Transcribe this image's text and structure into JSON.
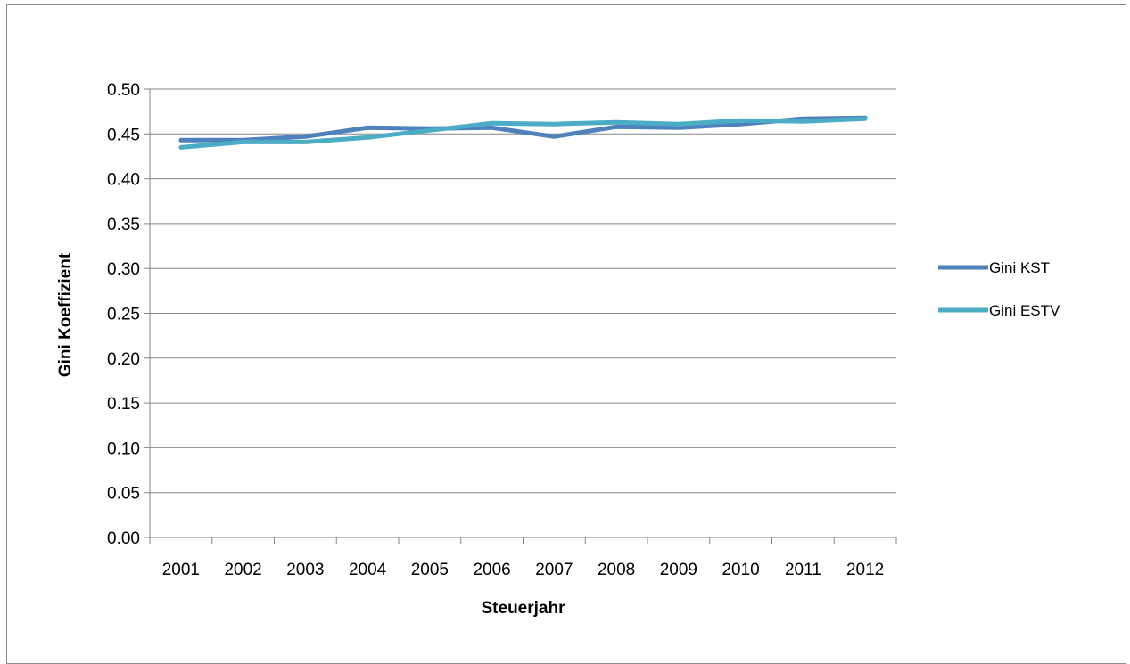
{
  "chart_data": {
    "type": "line",
    "categories": [
      "2001",
      "2002",
      "2003",
      "2004",
      "2005",
      "2006",
      "2007",
      "2008",
      "2009",
      "2010",
      "2011",
      "2012"
    ],
    "series": [
      {
        "name": "Gini KST",
        "color": "#4f81bd",
        "values": [
          0.443,
          0.443,
          0.447,
          0.457,
          0.456,
          0.457,
          0.447,
          0.458,
          0.457,
          0.461,
          0.467,
          0.468
        ]
      },
      {
        "name": "Gini ESTV",
        "color": "#4bacc6",
        "values": [
          0.435,
          0.441,
          0.441,
          0.446,
          0.454,
          0.462,
          0.461,
          0.463,
          0.461,
          0.465,
          0.464,
          0.467
        ]
      }
    ],
    "y_ticks": [
      "0.00",
      "0.05",
      "0.10",
      "0.15",
      "0.20",
      "0.25",
      "0.30",
      "0.35",
      "0.40",
      "0.45",
      "0.50"
    ],
    "xlabel": "Steuerjahr",
    "ylabel": "Gini Koeffizient",
    "ylim": [
      0,
      0.5
    ],
    "grid": true,
    "legend_position": "right"
  }
}
